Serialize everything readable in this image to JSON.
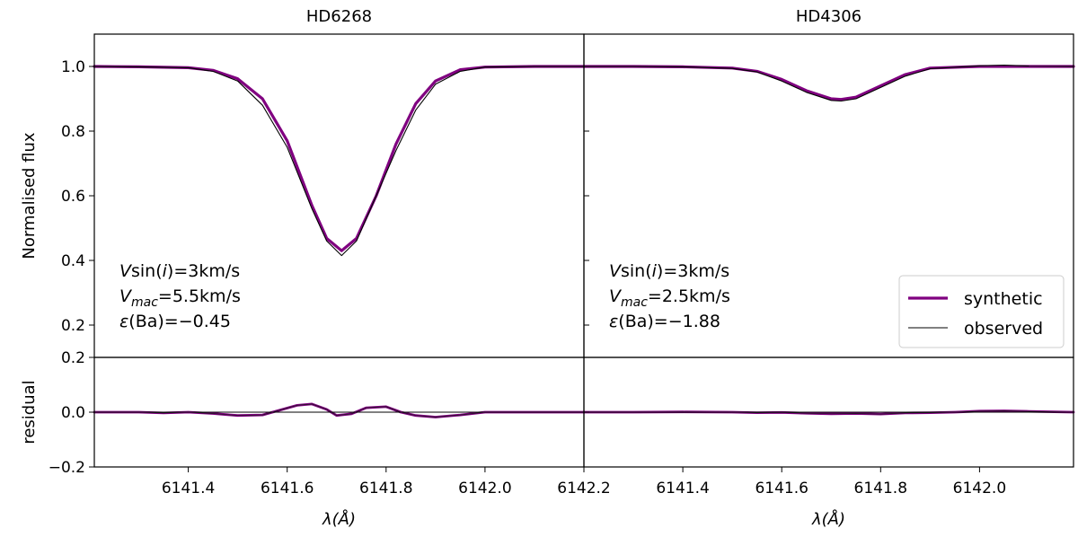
{
  "chart_data": [
    {
      "type": "line",
      "panel": "top-left",
      "title": "HD6268",
      "ylabel": "Normalised flux",
      "xlim": [
        6141.21,
        6142.2
      ],
      "ylim": [
        0.1,
        1.1
      ],
      "yticks": [
        "0.2",
        "0.4",
        "0.6",
        "0.8",
        "1.0"
      ],
      "annotations": [
        {
          "prefix": "V",
          "mid": "sin(",
          "it": "i",
          "suffix": ")=3km/s"
        },
        {
          "prefix": "V",
          "sub": "mac",
          "suffix": "=5.5km/s"
        },
        {
          "prefix": "ε",
          "suffix": "(Ba)=−0.45"
        }
      ],
      "series": [
        {
          "name": "synthetic",
          "color": "#800080",
          "x": [
            6141.21,
            6141.3,
            6141.4,
            6141.45,
            6141.5,
            6141.55,
            6141.6,
            6141.65,
            6141.68,
            6141.71,
            6141.74,
            6141.78,
            6141.82,
            6141.86,
            6141.9,
            6141.95,
            6142.0,
            6142.1,
            6142.2
          ],
          "y": [
            1.0,
            0.999,
            0.996,
            0.988,
            0.962,
            0.9,
            0.77,
            0.57,
            0.468,
            0.43,
            0.468,
            0.6,
            0.76,
            0.885,
            0.955,
            0.99,
            0.998,
            1.0,
            1.0
          ]
        },
        {
          "name": "observed",
          "color": "#000000",
          "x": [
            6141.21,
            6141.3,
            6141.4,
            6141.45,
            6141.5,
            6141.55,
            6141.6,
            6141.65,
            6141.68,
            6141.71,
            6141.74,
            6141.78,
            6141.82,
            6141.86,
            6141.9,
            6141.95,
            6142.0,
            6142.1,
            6142.2
          ],
          "y": [
            1.0,
            0.999,
            0.996,
            0.985,
            0.955,
            0.88,
            0.75,
            0.56,
            0.46,
            0.415,
            0.46,
            0.6,
            0.74,
            0.865,
            0.945,
            0.985,
            0.998,
            1.0,
            1.0
          ]
        }
      ]
    },
    {
      "type": "line",
      "panel": "top-right",
      "title": "HD4306",
      "xlim": [
        6141.2,
        6142.19
      ],
      "ylim": [
        0.1,
        1.1
      ],
      "annotations": [
        {
          "prefix": "V",
          "mid": "sin(",
          "it": "i",
          "suffix": ")=3km/s"
        },
        {
          "prefix": "V",
          "sub": "mac",
          "suffix": "=2.5km/s"
        },
        {
          "prefix": "ε",
          "suffix": "(Ba)=−1.88"
        }
      ],
      "legend": {
        "placement": "lower-right",
        "entries": [
          "synthetic",
          "observed"
        ]
      },
      "series": [
        {
          "name": "synthetic",
          "color": "#800080",
          "x": [
            6141.2,
            6141.3,
            6141.4,
            6141.5,
            6141.55,
            6141.6,
            6141.65,
            6141.7,
            6141.72,
            6141.75,
            6141.8,
            6141.85,
            6141.9,
            6142.0,
            6142.1,
            6142.19
          ],
          "y": [
            1.0,
            1.0,
            0.999,
            0.995,
            0.985,
            0.96,
            0.925,
            0.9,
            0.898,
            0.905,
            0.94,
            0.975,
            0.995,
            1.0,
            1.0,
            1.0
          ]
        },
        {
          "name": "observed",
          "color": "#000000",
          "x": [
            6141.2,
            6141.3,
            6141.4,
            6141.5,
            6141.55,
            6141.6,
            6141.65,
            6141.7,
            6141.72,
            6141.75,
            6141.8,
            6141.85,
            6141.9,
            6142.0,
            6142.05,
            6142.1,
            6142.19
          ],
          "y": [
            1.0,
            1.0,
            0.999,
            0.994,
            0.983,
            0.955,
            0.92,
            0.895,
            0.893,
            0.9,
            0.935,
            0.97,
            0.993,
            1.002,
            1.004,
            1.001,
            1.0
          ]
        }
      ]
    },
    {
      "type": "line",
      "panel": "bottom-left",
      "ylabel": "residual",
      "xlabel": "λ(Å)",
      "xlim": [
        6141.21,
        6142.2
      ],
      "ylim": [
        -0.2,
        0.2
      ],
      "xticks": [
        "6141.4",
        "6141.6",
        "6141.8",
        "6142.0",
        "6142.2"
      ],
      "xtick_values": [
        6141.4,
        6141.6,
        6141.8,
        6142.0,
        6142.2
      ],
      "yticks": [
        "−0.2",
        "0.0",
        "0.2"
      ],
      "ytick_values": [
        -0.2,
        0.0,
        0.2
      ],
      "zero_line": true,
      "series": [
        {
          "name": "residual",
          "color": "#800080",
          "x": [
            6141.21,
            6141.3,
            6141.35,
            6141.4,
            6141.45,
            6141.5,
            6141.55,
            6141.58,
            6141.62,
            6141.65,
            6141.68,
            6141.7,
            6141.73,
            6141.76,
            6141.8,
            6141.83,
            6141.86,
            6141.9,
            6141.95,
            6142.0,
            6142.1,
            6142.2
          ],
          "y": [
            0.0,
            0.0,
            -0.003,
            0.0,
            -0.005,
            -0.012,
            -0.01,
            0.005,
            0.025,
            0.03,
            0.01,
            -0.012,
            -0.006,
            0.016,
            0.02,
            0.0,
            -0.012,
            -0.018,
            -0.01,
            0.0,
            0.0,
            0.0
          ]
        }
      ]
    },
    {
      "type": "line",
      "panel": "bottom-right",
      "xlabel": "λ(Å)",
      "xlim": [
        6141.2,
        6142.19
      ],
      "ylim": [
        -0.2,
        0.2
      ],
      "xticks": [
        "6141.4",
        "6141.6",
        "6141.8",
        "6142.0"
      ],
      "xtick_values": [
        6141.4,
        6141.6,
        6141.8,
        6142.0
      ],
      "zero_line": true,
      "series": [
        {
          "name": "residual",
          "color": "#800080",
          "x": [
            6141.2,
            6141.3,
            6141.4,
            6141.5,
            6141.55,
            6141.6,
            6141.65,
            6141.7,
            6141.75,
            6141.8,
            6141.85,
            6141.9,
            6141.95,
            6142.0,
            6142.05,
            6142.1,
            6142.19
          ],
          "y": [
            0.0,
            0.0,
            0.001,
            0.0,
            -0.002,
            -0.001,
            -0.004,
            -0.006,
            -0.005,
            -0.007,
            -0.003,
            -0.002,
            0.0,
            0.004,
            0.005,
            0.003,
            0.0
          ]
        }
      ]
    }
  ]
}
